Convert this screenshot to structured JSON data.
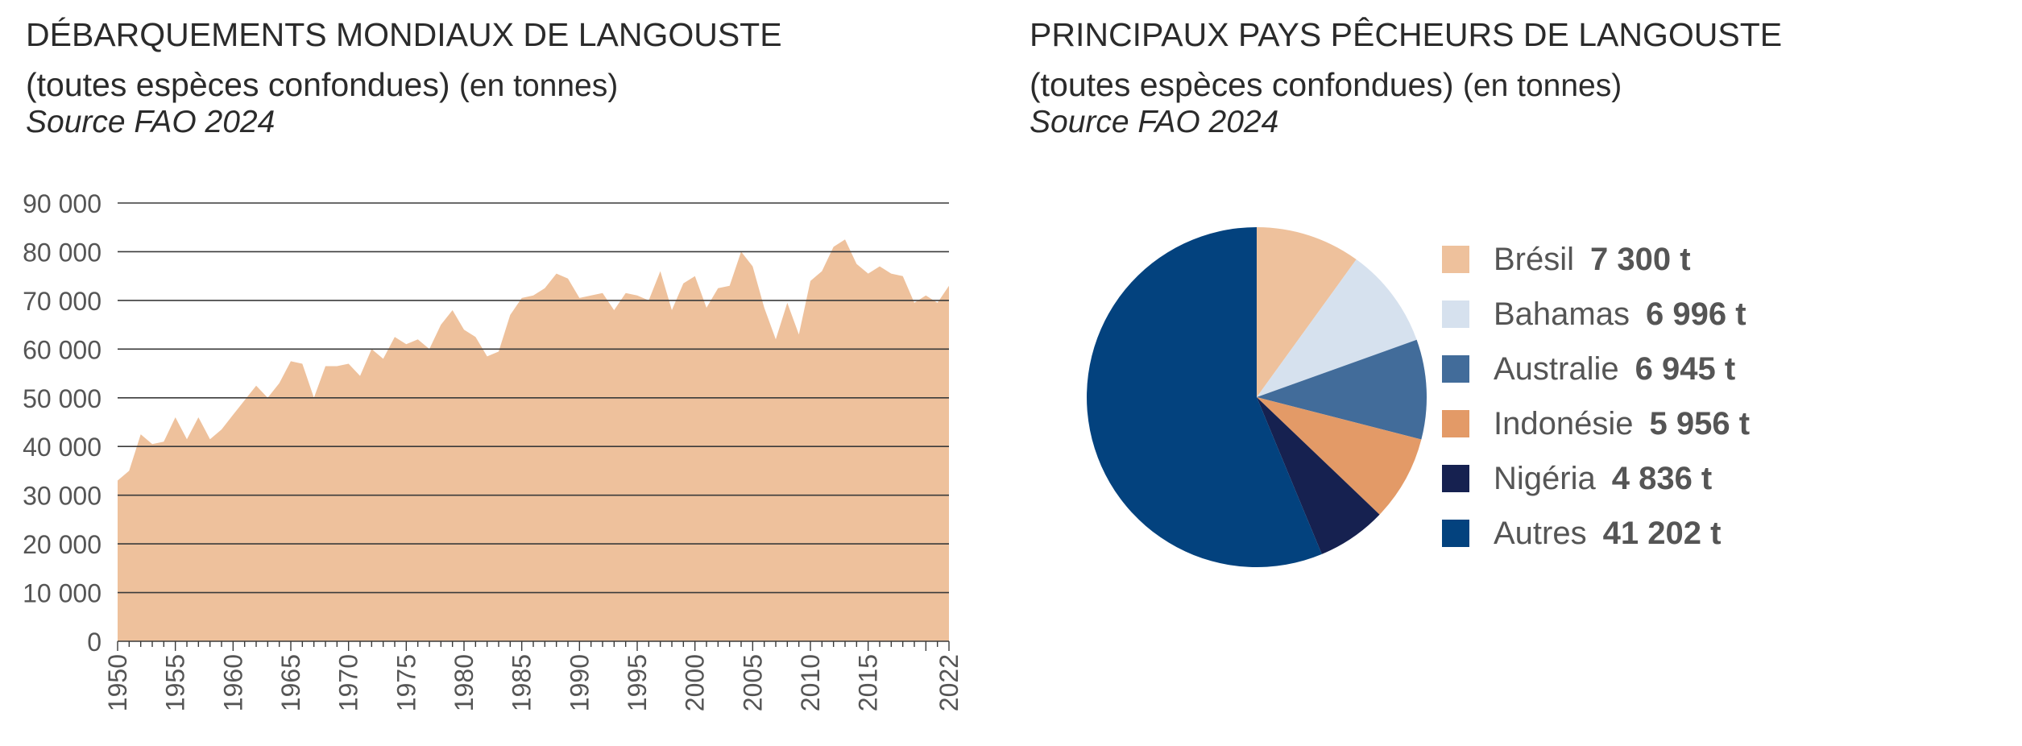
{
  "left": {
    "title_line1": "DÉBARQUEMENTS MONDIAUX DE LANGOUSTE",
    "title_line2": "(toutes espèces confondues)",
    "title_unit": "(en tonnes)",
    "source": "Source FAO 2024"
  },
  "right": {
    "title_line1": "PRINCIPAUX PAYS PÊCHEURS DE LANGOUSTE",
    "title_line2": "(toutes espèces confondues)",
    "title_unit": "(en tonnes)",
    "source": "Source FAO 2024"
  },
  "colors": {
    "area_fill": "#EEC19C",
    "gridline": "#3a3a3a",
    "axis_text": "#555555"
  },
  "chart_data": [
    {
      "type": "area",
      "title": "DÉBARQUEMENTS MONDIAUX DE LANGOUSTE (toutes espèces confondues) (en tonnes)",
      "xlabel": "",
      "ylabel": "",
      "ylim": [
        0,
        90000
      ],
      "xlim": [
        1950,
        2022
      ],
      "y_ticks": [
        0,
        10000,
        20000,
        30000,
        40000,
        50000,
        60000,
        70000,
        80000,
        90000
      ],
      "y_tick_labels": [
        "0",
        "10 000",
        "20 000",
        "30 000",
        "40 000",
        "50 000",
        "60 000",
        "70 000",
        "80 000",
        "90 000"
      ],
      "x_tick_labels": [
        "1950",
        "1955",
        "1960",
        "1965",
        "1970",
        "1975",
        "1980",
        "1985",
        "1990",
        "1995",
        "2000",
        "2005",
        "2010",
        "2015",
        "2022"
      ],
      "x_tick_values": [
        1950,
        1955,
        1960,
        1965,
        1970,
        1975,
        1980,
        1985,
        1990,
        1995,
        2000,
        2005,
        2010,
        2015,
        2022
      ],
      "grid": "horizontal",
      "x": [
        1950,
        1951,
        1952,
        1953,
        1954,
        1955,
        1956,
        1957,
        1958,
        1959,
        1960,
        1961,
        1962,
        1963,
        1964,
        1965,
        1966,
        1967,
        1968,
        1969,
        1970,
        1971,
        1972,
        1973,
        1974,
        1975,
        1976,
        1977,
        1978,
        1979,
        1980,
        1981,
        1982,
        1983,
        1984,
        1985,
        1986,
        1987,
        1988,
        1989,
        1990,
        1991,
        1992,
        1993,
        1994,
        1995,
        1996,
        1997,
        1998,
        1999,
        2000,
        2001,
        2002,
        2003,
        2004,
        2005,
        2006,
        2007,
        2008,
        2009,
        2010,
        2011,
        2012,
        2013,
        2014,
        2015,
        2016,
        2017,
        2018,
        2019,
        2020,
        2021,
        2022
      ],
      "series": [
        {
          "values": [
            33000,
            35000,
            42500,
            40500,
            41000,
            46000,
            41500,
            46000,
            41500,
            43500,
            46500,
            49500,
            52500,
            50000,
            53000,
            57500,
            57000,
            50000,
            56500,
            56500,
            57000,
            54500,
            60000,
            58000,
            62500,
            61000,
            62000,
            60000,
            65000,
            68000,
            64000,
            62500,
            58500,
            59500,
            67000,
            70500,
            71000,
            72500,
            75500,
            74500,
            70500,
            71000,
            71500,
            68000,
            71500,
            71000,
            70000,
            76000,
            68000,
            73500,
            75000,
            68500,
            72500,
            73000,
            80000,
            77000,
            68500,
            62000,
            69500,
            63000,
            74000,
            76000,
            81000,
            82500,
            77500,
            75500,
            77000,
            75500,
            75000,
            69500,
            71000,
            69500,
            73000
          ]
        }
      ]
    },
    {
      "type": "pie",
      "title": "PRINCIPAUX PAYS PÊCHEURS DE LANGOUSTE (toutes espèces confondues) (en tonnes)",
      "legend_position": "right",
      "slices": [
        {
          "label": "Brésil",
          "value": 7300,
          "value_label": "7 300 t",
          "color": "#EEC19C"
        },
        {
          "label": "Bahamas",
          "value": 6996,
          "value_label": "6 996 t",
          "color": "#D6E1EE"
        },
        {
          "label": "Australie",
          "value": 6945,
          "value_label": "6 945 t",
          "color": "#426C9A"
        },
        {
          "label": "Indonésie",
          "value": 5956,
          "value_label": "5 956 t",
          "color": "#E39A67"
        },
        {
          "label": "Nigéria",
          "value": 4836,
          "value_label": "4 836 t",
          "color": "#162150"
        },
        {
          "label": "Autres",
          "value": 41202,
          "value_label": "41 202 t",
          "color": "#03427E"
        }
      ]
    }
  ]
}
